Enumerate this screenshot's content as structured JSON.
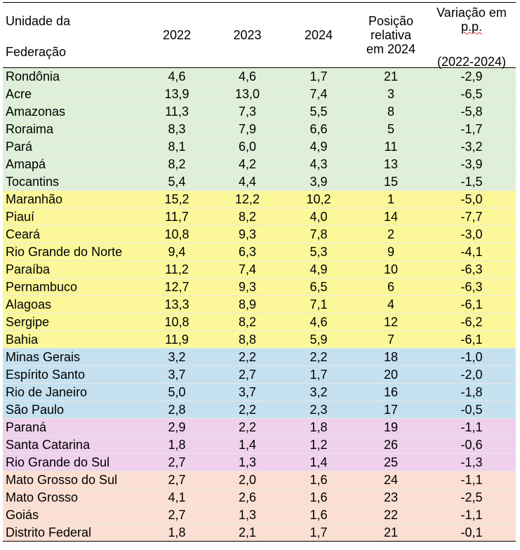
{
  "header": {
    "uf_line1": "Unidade da",
    "uf_line2": "Federação",
    "y2022": "2022",
    "y2023": "2023",
    "y2024": "2024",
    "pos": "Posição relativa em 2024",
    "var_line1": "Variação em",
    "var_line2": "p.p.",
    "var_line3": "(2022-2024)"
  },
  "region_colors": {
    "norte": "#dff0d8",
    "nordeste": "#fcf89a",
    "sudeste": "#c5e1f0",
    "sul": "#efd1ed",
    "centro": "#fbdfd2"
  },
  "rows": [
    {
      "uf": "Rondônia",
      "v2022": "4,6",
      "v2023": "4,6",
      "v2024": "1,7",
      "pos": "21",
      "var": "-2,9"
    },
    {
      "uf": "Acre",
      "v2022": "13,9",
      "v2023": "13,0",
      "v2024": "7,4",
      "pos": "3",
      "var": "-6,5"
    },
    {
      "uf": "Amazonas",
      "v2022": "11,3",
      "v2023": "7,3",
      "v2024": "5,5",
      "pos": "8",
      "var": "-5,8"
    },
    {
      "uf": "Roraima",
      "v2022": "8,3",
      "v2023": "7,9",
      "v2024": "6,6",
      "pos": "5",
      "var": "-1,7"
    },
    {
      "uf": "Pará",
      "v2022": "8,1",
      "v2023": "6,0",
      "v2024": "4,9",
      "pos": "11",
      "var": "-3,2"
    },
    {
      "uf": "Amapá",
      "v2022": "8,2",
      "v2023": "4,2",
      "v2024": "4,3",
      "pos": "13",
      "var": "-3,9"
    },
    {
      "uf": "Tocantins",
      "v2022": "5,4",
      "v2023": "4,4",
      "v2024": "3,9",
      "pos": "15",
      "var": "-1,5"
    },
    {
      "uf": "Maranhão",
      "v2022": "15,2",
      "v2023": "12,2",
      "v2024": "10,2",
      "pos": "1",
      "var": "-5,0"
    },
    {
      "uf": "Piauí",
      "v2022": "11,7",
      "v2023": "8,2",
      "v2024": "4,0",
      "pos": "14",
      "var": "-7,7"
    },
    {
      "uf": "Ceará",
      "v2022": "10,8",
      "v2023": "9,3",
      "v2024": "7,8",
      "pos": "2",
      "var": "-3,0"
    },
    {
      "uf": "Rio Grande do Norte",
      "v2022": "9,4",
      "v2023": "6,3",
      "v2024": "5,3",
      "pos": "9",
      "var": "-4,1"
    },
    {
      "uf": "Paraíba",
      "v2022": "11,2",
      "v2023": "7,4",
      "v2024": "4,9",
      "pos": "10",
      "var": "-6,3"
    },
    {
      "uf": "Pernambuco",
      "v2022": "12,7",
      "v2023": "9,3",
      "v2024": "6,5",
      "pos": "6",
      "var": "-6,3"
    },
    {
      "uf": "Alagoas",
      "v2022": "13,3",
      "v2023": "8,9",
      "v2024": "7,1",
      "pos": "4",
      "var": "-6,1"
    },
    {
      "uf": "Sergipe",
      "v2022": "10,8",
      "v2023": "8,2",
      "v2024": "4,6",
      "pos": "12",
      "var": "-6,2"
    },
    {
      "uf": "Bahia",
      "v2022": "11,9",
      "v2023": "8,8",
      "v2024": "5,9",
      "pos": "7",
      "var": "-6,1"
    },
    {
      "uf": "Minas Gerais",
      "v2022": "3,2",
      "v2023": "2,2",
      "v2024": "2,2",
      "pos": "18",
      "var": "-1,0"
    },
    {
      "uf": "Espírito Santo",
      "v2022": "3,7",
      "v2023": "2,7",
      "v2024": "1,7",
      "pos": "20",
      "var": "-2,0"
    },
    {
      "uf": "Rio de Janeiro",
      "v2022": "5,0",
      "v2023": "3,7",
      "v2024": "3,2",
      "pos": "16",
      "var": "-1,8"
    },
    {
      "uf": "São Paulo",
      "v2022": "2,8",
      "v2023": "2,2",
      "v2024": "2,3",
      "pos": "17",
      "var": "-0,5"
    },
    {
      "uf": "Paraná",
      "v2022": "2,9",
      "v2023": "2,2",
      "v2024": "1,8",
      "pos": "19",
      "var": "-1,1"
    },
    {
      "uf": "Santa Catarina",
      "v2022": "1,8",
      "v2023": "1,4",
      "v2024": "1,2",
      "pos": "26",
      "var": "-0,6"
    },
    {
      "uf": "Rio Grande do Sul",
      "v2022": "2,7",
      "v2023": "1,3",
      "v2024": "1,4",
      "pos": "25",
      "var": "-1,3"
    },
    {
      "uf": "Mato Grosso do Sul",
      "v2022": "2,7",
      "v2023": "2,0",
      "v2024": "1,6",
      "pos": "24",
      "var": "-1,1"
    },
    {
      "uf": "Mato Grosso",
      "v2022": "4,1",
      "v2023": "2,6",
      "v2024": "1,6",
      "pos": "23",
      "var": "-2,5"
    },
    {
      "uf": "Goiás",
      "v2022": "2,7",
      "v2023": "1,3",
      "v2024": "1,6",
      "pos": "22",
      "var": "-1,1"
    },
    {
      "uf": "Distrito Federal",
      "v2022": "1,8",
      "v2023": "2,1",
      "v2024": "1,7",
      "pos": "21",
      "var": "-0,1"
    }
  ]
}
